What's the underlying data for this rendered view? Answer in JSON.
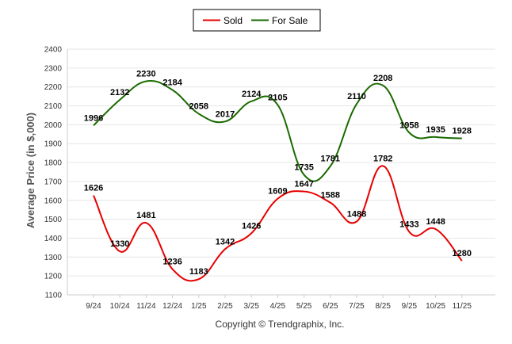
{
  "chart_data": {
    "type": "line",
    "categories": [
      "9/24",
      "10/24",
      "11/24",
      "12/24",
      "1/25",
      "2/25",
      "3/25",
      "4/25",
      "5/25",
      "6/25",
      "7/25",
      "8/25",
      "9/25",
      "10/25",
      "11/25"
    ],
    "series": [
      {
        "name": "Sold",
        "color": "#e60000",
        "values": [
          1626,
          1330,
          1481,
          1236,
          1183,
          1342,
          1426,
          1609,
          1647,
          1588,
          1488,
          1782,
          1433,
          1448,
          1280
        ]
      },
      {
        "name": "For Sale",
        "color": "#1a6a00",
        "values": [
          1996,
          2132,
          2230,
          2184,
          2058,
          2017,
          2124,
          2105,
          1735,
          1781,
          2110,
          2208,
          1958,
          1935,
          1928
        ]
      }
    ],
    "ylabel": "Average Price (in $,000)",
    "xlabel": "",
    "ylim": [
      1100,
      2400
    ],
    "yticks": [
      1100,
      1200,
      1300,
      1400,
      1500,
      1600,
      1700,
      1800,
      1900,
      2000,
      2100,
      2200,
      2300,
      2400
    ],
    "grid": true,
    "legend_position": "top-center"
  },
  "footer": "Copyright © Trendgraphix, Inc."
}
